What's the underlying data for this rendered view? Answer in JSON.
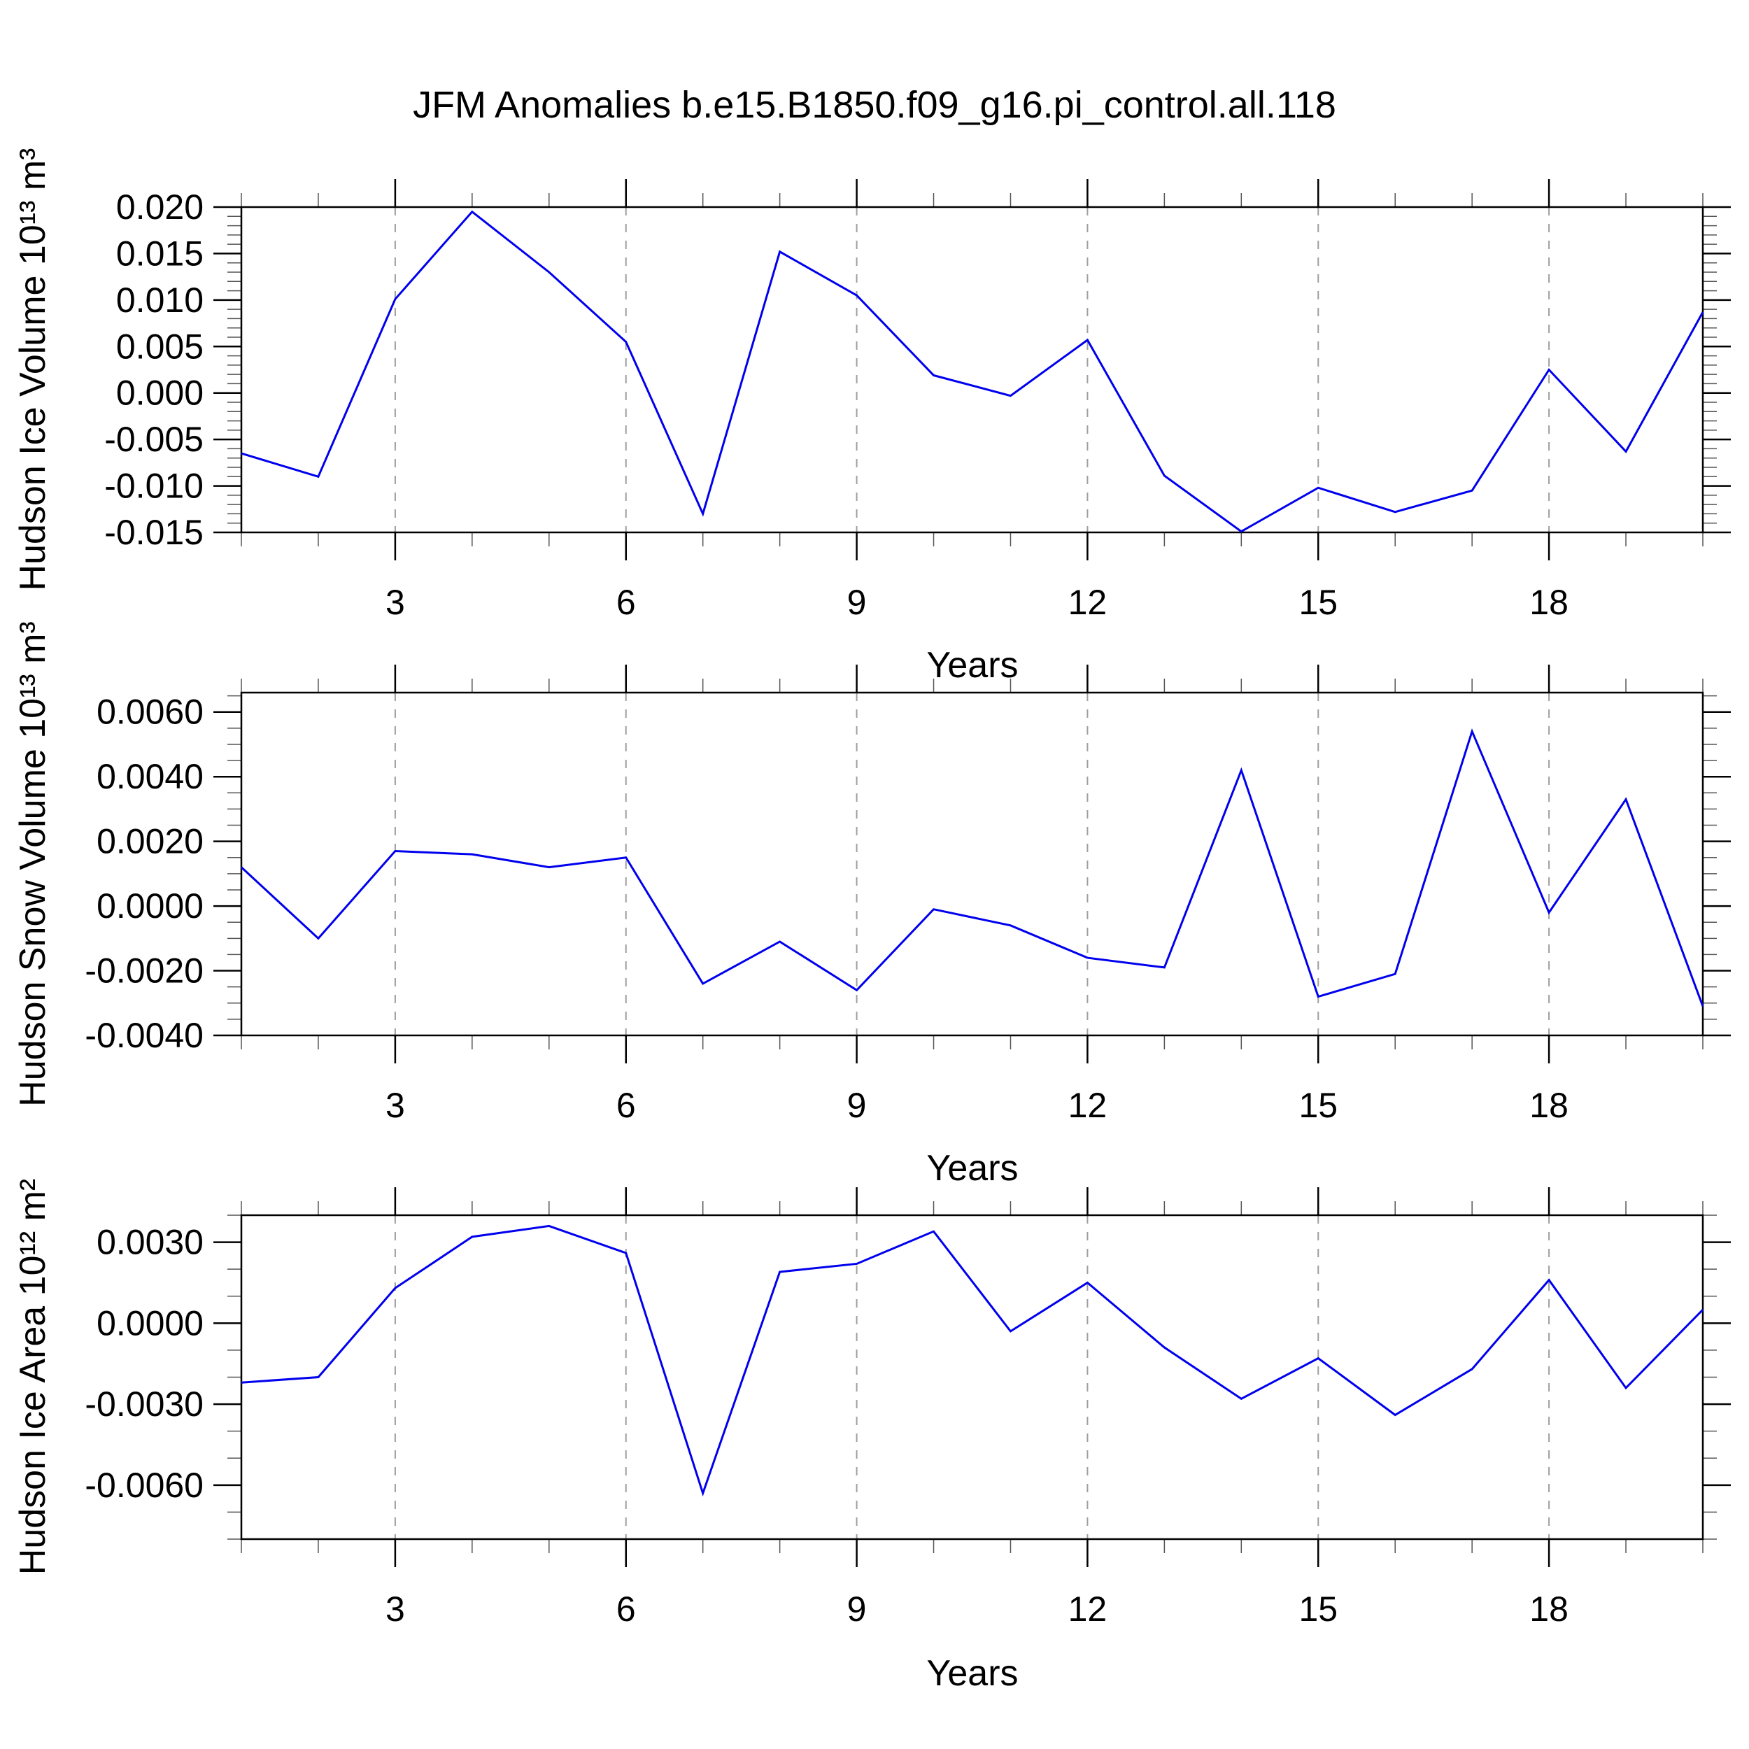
{
  "title": "JFM Anomalies b.e15.B1850.f09_g16.pi_control.all.118",
  "colors": {
    "line": "#0000EE",
    "grid": "#9E9E9E",
    "frame": "#000000",
    "minor_tick": "#555555"
  },
  "chart_data": [
    {
      "type": "line",
      "panel": "top",
      "ylabel": "Hudson Ice Volume 10¹³ m³",
      "xlabel": "Years",
      "x": [
        1,
        2,
        3,
        4,
        5,
        6,
        7,
        8,
        9,
        10,
        11,
        12,
        13,
        14,
        15,
        16,
        17,
        18,
        19,
        20
      ],
      "values": [
        -0.0065,
        -0.009,
        0.0101,
        0.0195,
        0.013,
        0.0055,
        -0.013,
        0.0152,
        0.0105,
        0.0019,
        -0.0003,
        0.0057,
        -0.0089,
        -0.0149,
        -0.0102,
        -0.0128,
        -0.0105,
        0.0025,
        -0.0063,
        0.0087
      ],
      "ylim": [
        -0.015,
        0.02
      ],
      "xlim": [
        1,
        20
      ],
      "yticks": {
        "values": [
          0.02,
          0.015,
          0.01,
          0.005,
          0.0,
          -0.005,
          -0.01,
          -0.015
        ],
        "labels": [
          "0.020",
          "0.015",
          "0.010",
          "0.005",
          "0.000",
          "-0.005",
          "-0.010",
          "-0.015"
        ]
      },
      "yminor_step": 0.001,
      "xticks_major": [
        3,
        6,
        9,
        12,
        15,
        18
      ],
      "xminor_step": 1,
      "grid": "vertical-dashed",
      "legend": "none"
    },
    {
      "type": "line",
      "panel": "middle",
      "ylabel": "Hudson Snow Volume 10¹³ m³",
      "xlabel": "Years",
      "x": [
        1,
        2,
        3,
        4,
        5,
        6,
        7,
        8,
        9,
        10,
        11,
        12,
        13,
        14,
        15,
        16,
        17,
        18,
        19,
        20
      ],
      "values": [
        0.0012,
        -0.001,
        0.0017,
        0.0016,
        0.0012,
        0.0015,
        -0.0024,
        -0.0011,
        -0.0026,
        -0.0001,
        -0.0006,
        -0.0016,
        -0.0019,
        0.0042,
        -0.0028,
        -0.0021,
        0.0054,
        -0.0002,
        0.0033,
        -0.0031
      ],
      "ylim": [
        -0.004,
        0.0066
      ],
      "xlim": [
        1,
        20
      ],
      "yticks": {
        "values": [
          0.006,
          0.004,
          0.002,
          0.0,
          -0.002,
          -0.004
        ],
        "labels": [
          "0.0060",
          "0.0040",
          "0.0020",
          "0.0000",
          "-0.0020",
          "-0.0040"
        ]
      },
      "yminor_step": 0.0005,
      "xticks_major": [
        3,
        6,
        9,
        12,
        15,
        18
      ],
      "xminor_step": 1,
      "grid": "vertical-dashed",
      "legend": "none"
    },
    {
      "type": "line",
      "panel": "bottom",
      "ylabel": "Hudson Ice Area 10¹² m²",
      "xlabel": "Years",
      "x": [
        1,
        2,
        3,
        4,
        5,
        6,
        7,
        8,
        9,
        10,
        11,
        12,
        13,
        14,
        15,
        16,
        17,
        18,
        19,
        20
      ],
      "values": [
        -0.0022,
        -0.002,
        0.0013,
        0.0032,
        0.0036,
        0.0026,
        -0.0063,
        0.0019,
        0.0022,
        0.0034,
        -0.0003,
        0.0015,
        -0.0009,
        -0.0028,
        -0.0013,
        -0.0034,
        -0.0017,
        0.0016,
        -0.0024,
        0.0005
      ],
      "ylim": [
        -0.008,
        0.004
      ],
      "xlim": [
        1,
        20
      ],
      "yticks": {
        "values": [
          0.003,
          0.0,
          -0.003,
          -0.006
        ],
        "labels": [
          "0.0030",
          "0.0000",
          "-0.0030",
          "-0.0060"
        ]
      },
      "yminor_step": 0.001,
      "xticks_major": [
        3,
        6,
        9,
        12,
        15,
        18
      ],
      "xminor_step": 1,
      "grid": "vertical-dashed",
      "legend": "none"
    }
  ]
}
